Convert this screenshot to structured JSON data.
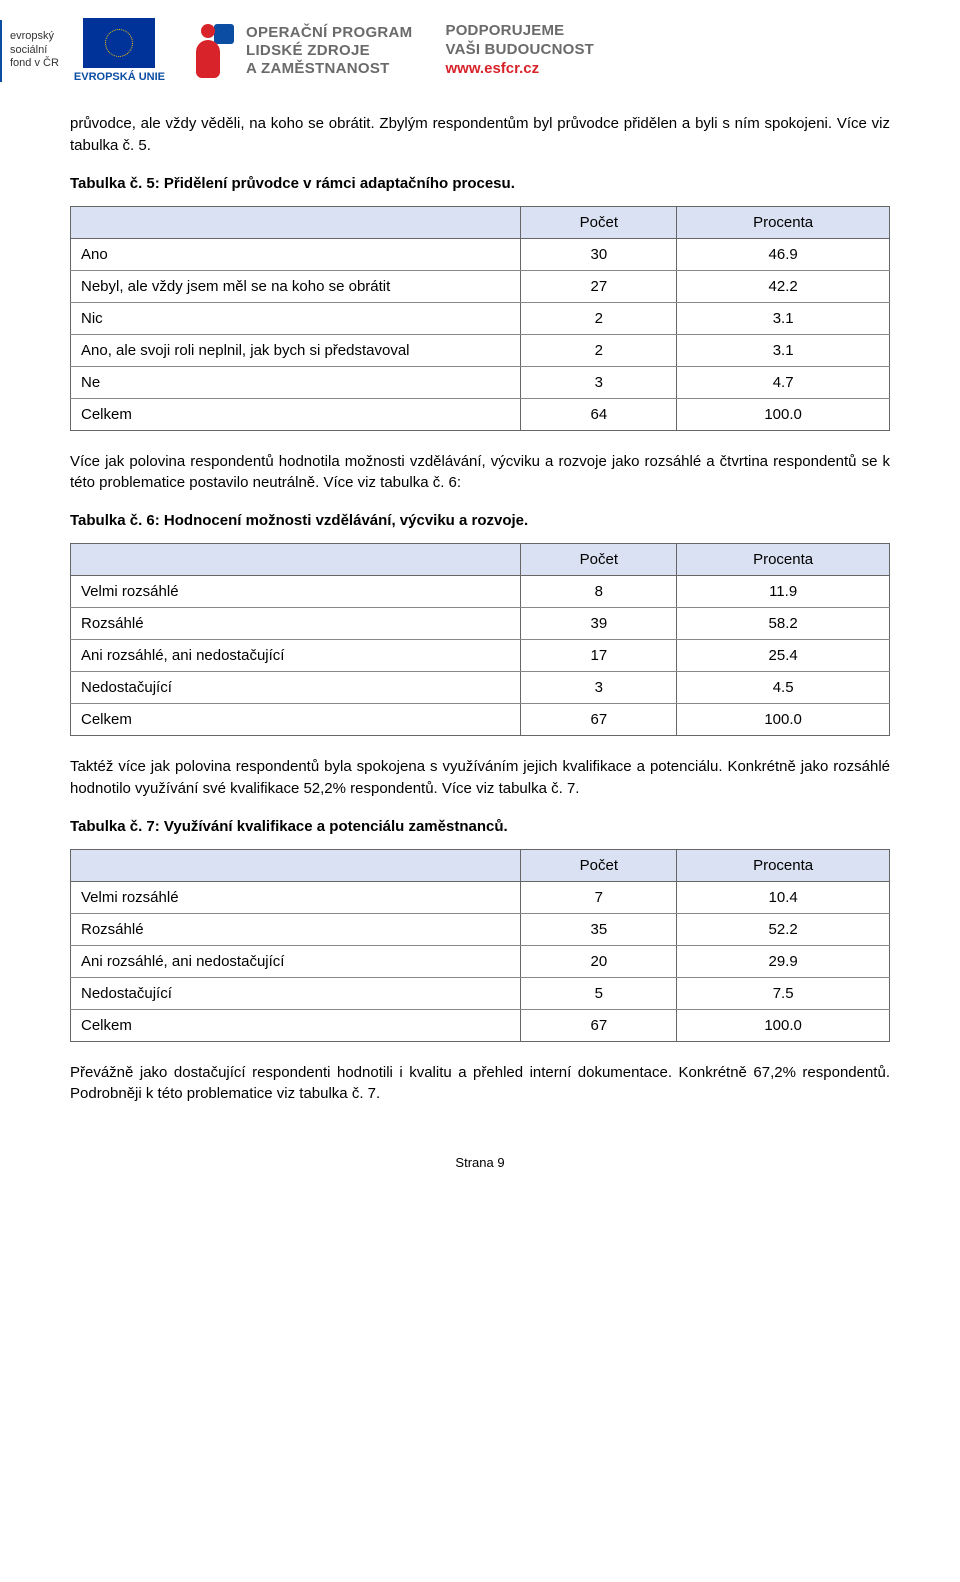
{
  "header": {
    "esf_lines": [
      "evropský",
      "sociální",
      "fond v ČR"
    ],
    "eu_label": "EVROPSKÁ UNIE",
    "op_lines": [
      "OPERAČNÍ PROGRAM",
      "LIDSKÉ ZDROJE",
      "A ZAMĚSTNANOST"
    ],
    "support_line1": "PODPORUJEME",
    "support_line2": "VAŠI BUDOUCNOST",
    "support_url": "www.esfcr.cz"
  },
  "para1": "průvodce, ale vždy věděli, na koho se obrátit. Zbylým respondentům byl průvodce přidělen a byli s ním spokojeni. Více viz tabulka č. 5.",
  "table5": {
    "caption": "Tabulka č. 5: Přidělení průvodce v rámci adaptačního procesu.",
    "columns": [
      "",
      "Počet",
      "Procenta"
    ],
    "rows": [
      [
        "Ano",
        "30",
        "46.9"
      ],
      [
        "Nebyl, ale vždy jsem měl se na koho se obrátit",
        "27",
        "42.2"
      ],
      [
        "Nic",
        "2",
        "3.1"
      ],
      [
        "Ano, ale svoji roli neplnil, jak bych si představoval",
        "2",
        "3.1"
      ],
      [
        "Ne",
        "3",
        "4.7"
      ],
      [
        "Celkem",
        "64",
        "100.0"
      ]
    ]
  },
  "para2": "Více jak polovina respondentů hodnotila možnosti vzdělávání, výcviku a rozvoje jako rozsáhlé a čtvrtina respondentů se k této problematice postavilo neutrálně. Více viz tabulka č. 6:",
  "table6": {
    "caption": "Tabulka č. 6: Hodnocení možnosti vzdělávání, výcviku a rozvoje.",
    "columns": [
      "",
      "Počet",
      "Procenta"
    ],
    "rows": [
      [
        "Velmi rozsáhlé",
        "8",
        "11.9"
      ],
      [
        "Rozsáhlé",
        "39",
        "58.2"
      ],
      [
        "Ani rozsáhlé, ani nedostačující",
        "17",
        "25.4"
      ],
      [
        "Nedostačující",
        "3",
        "4.5"
      ],
      [
        "Celkem",
        "67",
        "100.0"
      ]
    ]
  },
  "para3": "Taktéž více jak polovina respondentů byla spokojena s využíváním jejich kvalifikace a potenciálu. Konkrétně jako rozsáhlé hodnotilo využívání své kvalifikace 52,2% respondentů. Více viz tabulka č. 7.",
  "table7": {
    "caption": "Tabulka č. 7: Využívání kvalifikace a potenciálu zaměstnanců.",
    "columns": [
      "",
      "Počet",
      "Procenta"
    ],
    "rows": [
      [
        "Velmi rozsáhlé",
        "7",
        "10.4"
      ],
      [
        "Rozsáhlé",
        "35",
        "52.2"
      ],
      [
        "Ani rozsáhlé, ani nedostačující",
        "20",
        "29.9"
      ],
      [
        "Nedostačující",
        "5",
        "7.5"
      ],
      [
        "Celkem",
        "67",
        "100.0"
      ]
    ]
  },
  "para4": "Převážně jako dostačující respondenti hodnotili i kvalitu a přehled interní dokumentace. Konkrétně 67,2% respondentů. Podrobněji k této problematice viz tabulka č. 7.",
  "footer": "Strana 9",
  "style": {
    "header_bg": "#d9e1f2",
    "border_color": "#666666",
    "text_color": "#000000",
    "accent_red": "#d8232a",
    "accent_blue": "#0b4da2",
    "grey_text": "#6a6a6a"
  }
}
